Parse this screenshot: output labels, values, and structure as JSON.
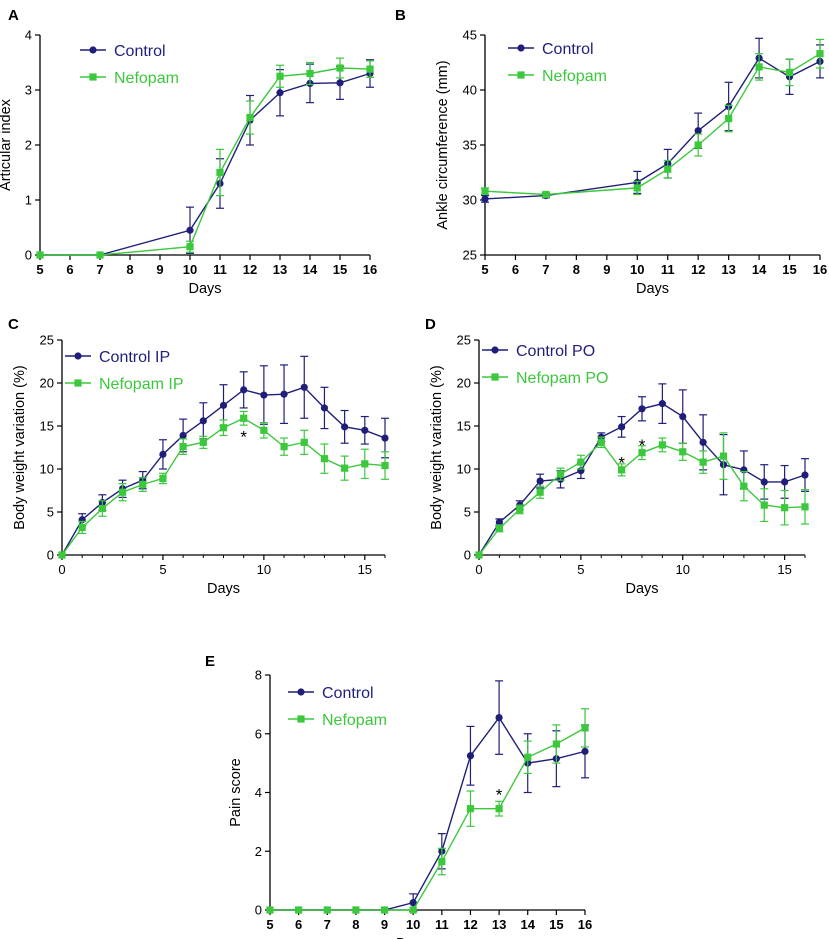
{
  "colors": {
    "control": "#1f1f7a",
    "nefopam": "#3cc83c",
    "axis": "#000000"
  },
  "chart_data": [
    {
      "panel": "A",
      "type": "line",
      "xlabel": "Days",
      "ylabel": "Articular index",
      "xlim": [
        5,
        16
      ],
      "ylim": [
        0,
        4
      ],
      "xticks": [
        5,
        6,
        7,
        8,
        9,
        10,
        11,
        12,
        13,
        14,
        15,
        16
      ],
      "yticks": [
        0,
        1,
        2,
        3,
        4
      ],
      "legend": "top-left",
      "series": [
        {
          "name": "Control",
          "color": "#1f1f7a",
          "marker": "circle",
          "x": [
            5,
            7,
            10,
            11,
            12,
            13,
            14,
            15,
            16
          ],
          "y": [
            0,
            0,
            0.45,
            1.3,
            2.45,
            2.95,
            3.12,
            3.13,
            3.3
          ],
          "err": [
            0,
            0,
            0.42,
            0.45,
            0.45,
            0.42,
            0.35,
            0.3,
            0.25
          ]
        },
        {
          "name": "Nefopam",
          "color": "#3cc83c",
          "marker": "square",
          "x": [
            5,
            7,
            10,
            11,
            12,
            13,
            14,
            15,
            16
          ],
          "y": [
            0,
            0,
            0.15,
            1.5,
            2.5,
            3.25,
            3.3,
            3.4,
            3.38
          ],
          "err": [
            0,
            0,
            0.1,
            0.42,
            0.3,
            0.2,
            0.2,
            0.18,
            0.15
          ]
        }
      ],
      "annotations": []
    },
    {
      "panel": "B",
      "type": "line",
      "xlabel": "Days",
      "ylabel": "Ankle circumference (mm)",
      "xlim": [
        5,
        16
      ],
      "ylim": [
        25,
        45
      ],
      "xticks": [
        5,
        6,
        7,
        8,
        9,
        10,
        11,
        12,
        13,
        14,
        15,
        16
      ],
      "yticks": [
        25,
        30,
        35,
        40,
        45
      ],
      "legend": "top-left",
      "series": [
        {
          "name": "Control",
          "color": "#1f1f7a",
          "marker": "circle",
          "x": [
            5,
            7,
            10,
            11,
            12,
            13,
            14,
            15,
            16
          ],
          "y": [
            30.1,
            30.4,
            31.6,
            33.3,
            36.3,
            38.5,
            42.9,
            41.2,
            42.6
          ],
          "err": [
            0.3,
            0.2,
            1.0,
            1.3,
            1.6,
            2.2,
            1.8,
            1.6,
            1.5
          ]
        },
        {
          "name": "Nefopam",
          "color": "#3cc83c",
          "marker": "square",
          "x": [
            5,
            7,
            10,
            11,
            12,
            13,
            14,
            15,
            16
          ],
          "y": [
            30.8,
            30.5,
            31.1,
            32.8,
            35.0,
            37.4,
            42.1,
            41.6,
            43.3
          ],
          "err": [
            0.3,
            0.2,
            0.6,
            0.8,
            1.0,
            1.2,
            1.2,
            1.2,
            1.3
          ]
        }
      ],
      "annotations": []
    },
    {
      "panel": "C",
      "type": "line",
      "xlabel": "Days",
      "ylabel": "Body weight variation (%)",
      "xlim": [
        0,
        16
      ],
      "ylim": [
        0,
        25
      ],
      "xticks": [
        0,
        5,
        10,
        15
      ],
      "yticks": [
        0,
        5,
        10,
        15,
        20,
        25
      ],
      "legend": "top-left",
      "series": [
        {
          "name": "Control IP",
          "color": "#1f1f7a",
          "marker": "circle",
          "x": [
            0,
            1,
            2,
            3,
            4,
            5,
            6,
            7,
            8,
            9,
            10,
            11,
            12,
            13,
            14,
            15,
            16
          ],
          "y": [
            0,
            4.1,
            6.1,
            7.7,
            8.7,
            11.7,
            13.9,
            15.6,
            17.4,
            19.2,
            18.6,
            18.7,
            19.5,
            17.1,
            14.9,
            14.5,
            13.6
          ],
          "err": [
            0,
            0.7,
            0.9,
            1.0,
            1.0,
            1.7,
            1.9,
            2.1,
            2.4,
            2.1,
            3.4,
            3.4,
            3.6,
            2.4,
            1.9,
            1.6,
            2.3
          ]
        },
        {
          "name": "Nefopam IP",
          "color": "#3cc83c",
          "marker": "square",
          "x": [
            0,
            1,
            2,
            3,
            4,
            5,
            6,
            7,
            8,
            9,
            10,
            11,
            12,
            13,
            14,
            15,
            16
          ],
          "y": [
            0,
            3.2,
            5.4,
            7.3,
            8.2,
            8.9,
            12.6,
            13.1,
            14.8,
            15.9,
            14.5,
            12.6,
            13.1,
            11.2,
            10.1,
            10.6,
            10.4
          ],
          "err": [
            0,
            0.7,
            0.9,
            1.0,
            0.8,
            0.6,
            0.9,
            0.7,
            0.9,
            0.8,
            0.9,
            1.0,
            1.4,
            1.7,
            1.4,
            1.7,
            1.6
          ]
        }
      ],
      "annotations": [
        {
          "text": "*",
          "x": 9,
          "y": 14.0
        }
      ]
    },
    {
      "panel": "D",
      "type": "line",
      "xlabel": "Days",
      "ylabel": "Body weight variation (%)",
      "xlim": [
        0,
        16
      ],
      "ylim": [
        0,
        25
      ],
      "xticks": [
        0,
        5,
        10,
        15
      ],
      "yticks": [
        0,
        5,
        10,
        15,
        20,
        25
      ],
      "legend": "top-left",
      "series": [
        {
          "name": "Control PO",
          "color": "#1f1f7a",
          "marker": "circle",
          "x": [
            0,
            1,
            2,
            3,
            4,
            5,
            6,
            7,
            8,
            9,
            10,
            11,
            12,
            13,
            14,
            15,
            16
          ],
          "y": [
            0,
            3.8,
            5.8,
            8.6,
            8.8,
            9.8,
            13.7,
            14.9,
            17.0,
            17.6,
            16.1,
            13.1,
            10.5,
            9.9,
            8.5,
            8.5,
            9.3
          ],
          "err": [
            0,
            0.4,
            0.5,
            0.8,
            1.0,
            0.9,
            0.5,
            1.2,
            1.4,
            2.3,
            3.1,
            3.2,
            3.5,
            2.2,
            2.0,
            1.9,
            1.9
          ]
        },
        {
          "name": "Nefopam PO",
          "color": "#3cc83c",
          "marker": "square",
          "x": [
            0,
            1,
            2,
            3,
            4,
            5,
            6,
            7,
            8,
            9,
            10,
            11,
            12,
            13,
            14,
            15,
            16
          ],
          "y": [
            0,
            3.1,
            5.3,
            7.3,
            9.4,
            10.8,
            13.1,
            9.9,
            11.9,
            12.8,
            12.0,
            10.8,
            11.5,
            8.0,
            5.8,
            5.5,
            5.6
          ],
          "err": [
            0,
            0.4,
            0.5,
            0.7,
            0.7,
            0.8,
            0.6,
            0.7,
            0.8,
            0.8,
            1.0,
            1.3,
            2.7,
            1.7,
            1.9,
            2.0,
            2.0
          ]
        }
      ],
      "annotations": [
        {
          "text": "*",
          "x": 7,
          "y": 11.0
        },
        {
          "text": "*",
          "x": 8,
          "y": 13.0
        }
      ]
    },
    {
      "panel": "E",
      "type": "line",
      "xlabel": "Days",
      "ylabel": "Pain score",
      "xlim": [
        5,
        16
      ],
      "ylim": [
        0,
        8
      ],
      "xticks": [
        5,
        6,
        7,
        8,
        9,
        10,
        11,
        12,
        13,
        14,
        15,
        16
      ],
      "yticks": [
        0,
        2,
        4,
        6,
        8
      ],
      "legend": "top-left",
      "series": [
        {
          "name": "Control",
          "color": "#1f1f7a",
          "marker": "circle",
          "x": [
            5,
            6,
            7,
            8,
            9,
            10,
            11,
            12,
            13,
            14,
            15,
            16
          ],
          "y": [
            0,
            0,
            0,
            0,
            0,
            0.25,
            2.0,
            5.25,
            6.55,
            5.0,
            5.15,
            5.4
          ],
          "err": [
            0,
            0,
            0,
            0,
            0,
            0.3,
            0.6,
            1.0,
            1.25,
            1.0,
            0.95,
            0.9
          ]
        },
        {
          "name": "Nefopam",
          "color": "#3cc83c",
          "marker": "square",
          "x": [
            5,
            6,
            7,
            8,
            9,
            10,
            11,
            12,
            13,
            14,
            15,
            16
          ],
          "y": [
            0,
            0,
            0,
            0,
            0,
            0,
            1.65,
            3.45,
            3.45,
            5.2,
            5.65,
            6.2
          ],
          "err": [
            0,
            0,
            0,
            0,
            0,
            0,
            0.45,
            0.6,
            0.25,
            0.55,
            0.65,
            0.65
          ]
        }
      ],
      "annotations": [
        {
          "text": "*",
          "x": 13,
          "y": 4.0
        }
      ]
    }
  ]
}
